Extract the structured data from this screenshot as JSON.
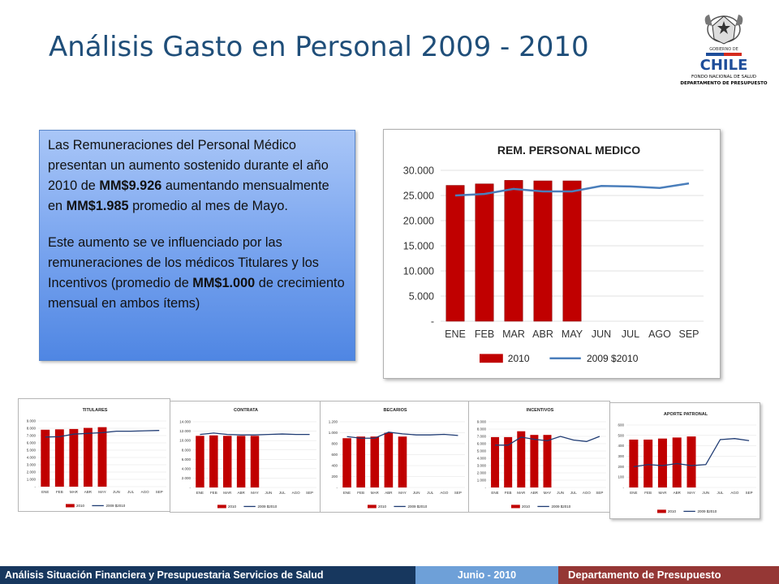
{
  "slide": {
    "title": "Análisis Gasto en Personal 2009 - 2010",
    "logo": {
      "text_top": "GOBIERNO DE",
      "text_main": "CHILE",
      "org1": "FONDO NACIONAL DE SALUD",
      "org2": "DEPARTAMENTO DE PRESUPUESTO"
    },
    "textbox": {
      "p1": [
        {
          "t": "Las Remuneraciones  del Personal Médico presentan un aumento sostenido durante el año 2010 de ",
          "b": false
        },
        {
          "t": "MM$9.926",
          "b": true
        },
        {
          "t": "  aumentando mensualmente en ",
          "b": false
        },
        {
          "t": "MM$1.985",
          "b": true
        },
        {
          "t": " promedio al mes de Mayo.",
          "b": false
        }
      ],
      "p2": [
        {
          "t": "Este aumento se ve influenciado por las remuneraciones de los médicos Titulares y  los Incentivos (promedio de ",
          "b": false
        },
        {
          "t": "MM$1.000",
          "b": true
        },
        {
          "t": " de crecimiento mensual en ambos ítems)",
          "b": false
        }
      ]
    },
    "footer": {
      "left": "Análisis Situación Financiera y Presupuestaria Servicios de Salud",
      "middle": "Junio - 2010",
      "right": "Departamento de Presupuesto"
    },
    "colors": {
      "bar": "#c00000",
      "line": "#4a7ebb",
      "title": "#1f4e79"
    }
  },
  "chart_data": [
    {
      "id": "medico",
      "type": "bar",
      "title": "REM. PERSONAL MEDICO",
      "categories": [
        "ENE",
        "FEB",
        "MAR",
        "ABR",
        "MAY",
        "JUN",
        "JUL",
        "AGO",
        "SEP"
      ],
      "yticks": [
        "-",
        "5.000",
        "10.000",
        "15.000",
        "20.000",
        "25.000",
        "30.000"
      ],
      "ylim": [
        0,
        30000
      ],
      "series": [
        {
          "name": "2010",
          "kind": "bar",
          "values": [
            27000,
            27300,
            28000,
            27900,
            27900,
            null,
            null,
            null,
            null
          ]
        },
        {
          "name": "2009 $2010",
          "kind": "line",
          "values": [
            25000,
            25300,
            26300,
            25800,
            25800,
            26900,
            26800,
            26500,
            27400
          ]
        }
      ]
    },
    {
      "id": "titulares",
      "type": "bar",
      "title": "TITULARES",
      "categories": [
        "ENE",
        "FEB",
        "MAR",
        "ABR",
        "MAY",
        "JUN",
        "JUL",
        "AGO",
        "SEP"
      ],
      "yticks": [
        "-",
        "1.000",
        "2.000",
        "3.000",
        "4.000",
        "5.000",
        "6.000",
        "7.000",
        "8.000",
        "9.000"
      ],
      "ylim": [
        0,
        9000
      ],
      "series": [
        {
          "name": "2010",
          "kind": "bar",
          "values": [
            7800,
            7850,
            7900,
            8050,
            8150,
            null,
            null,
            null,
            null
          ]
        },
        {
          "name": "2009 $2010",
          "kind": "line",
          "values": [
            6800,
            6850,
            7200,
            7300,
            7400,
            7600,
            7600,
            7650,
            7700
          ]
        }
      ]
    },
    {
      "id": "contrata",
      "type": "bar",
      "title": "CONTRATA",
      "categories": [
        "ENE",
        "FEB",
        "MAR",
        "ABR",
        "MAY",
        "JUN",
        "JUL",
        "AGO",
        "SEP"
      ],
      "yticks": [
        "-",
        "2.000",
        "4.000",
        "6.000",
        "8.000",
        "10.000",
        "12.000",
        "14.000"
      ],
      "ylim": [
        0,
        14000
      ],
      "series": [
        {
          "name": "2010",
          "kind": "bar",
          "values": [
            11000,
            11100,
            11000,
            11000,
            11000,
            null,
            null,
            null,
            null
          ]
        },
        {
          "name": "2009 $2010",
          "kind": "line",
          "values": [
            11300,
            11600,
            11300,
            11200,
            11200,
            11300,
            11400,
            11300,
            11300
          ]
        }
      ]
    },
    {
      "id": "becarios",
      "type": "bar",
      "title": "BECARIOS",
      "categories": [
        "ENE",
        "FEB",
        "MAR",
        "ABR",
        "MAY",
        "JUN",
        "JUL",
        "AGO",
        "SEP"
      ],
      "yticks": [
        "-",
        "200",
        "400",
        "600",
        "800",
        "1.000",
        "1.200"
      ],
      "ylim": [
        0,
        1200
      ],
      "series": [
        {
          "name": "2010",
          "kind": "bar",
          "values": [
            900,
            930,
            930,
            1000,
            930,
            null,
            null,
            null,
            null
          ]
        },
        {
          "name": "2009 $2010",
          "kind": "line",
          "values": [
            930,
            900,
            900,
            1010,
            980,
            960,
            960,
            970,
            950
          ]
        }
      ]
    },
    {
      "id": "incentivos",
      "type": "bar",
      "title": "INCENTIVOS",
      "categories": [
        "ENE",
        "FEB",
        "MAR",
        "ABR",
        "MAY",
        "JUN",
        "JUL",
        "AGO",
        "SEP"
      ],
      "yticks": [
        "-",
        "1.000",
        "2.000",
        "3.000",
        "4.000",
        "5.000",
        "6.000",
        "7.000",
        "8.000",
        "9.000"
      ],
      "ylim": [
        0,
        9000
      ],
      "series": [
        {
          "name": "2010",
          "kind": "bar",
          "values": [
            6900,
            6900,
            7700,
            7200,
            7200,
            null,
            null,
            null,
            null
          ]
        },
        {
          "name": "2009 $2010",
          "kind": "line",
          "values": [
            5800,
            5800,
            6900,
            6600,
            6400,
            7000,
            6500,
            6300,
            7000
          ]
        }
      ]
    },
    {
      "id": "aporte",
      "type": "bar",
      "title": "APORTE PATRONAL",
      "categories": [
        "ENE",
        "FEB",
        "MAR",
        "ABR",
        "MAY",
        "JUN",
        "JUL",
        "AGO",
        "SEP"
      ],
      "yticks": [
        "-",
        "100",
        "200",
        "300",
        "400",
        "500",
        "600"
      ],
      "ylim": [
        0,
        600
      ],
      "series": [
        {
          "name": "2010",
          "kind": "bar",
          "values": [
            460,
            460,
            470,
            480,
            490,
            null,
            null,
            null,
            null
          ]
        },
        {
          "name": "2009 $2010",
          "kind": "line",
          "values": [
            200,
            220,
            210,
            230,
            210,
            220,
            460,
            470,
            450
          ]
        }
      ]
    }
  ]
}
